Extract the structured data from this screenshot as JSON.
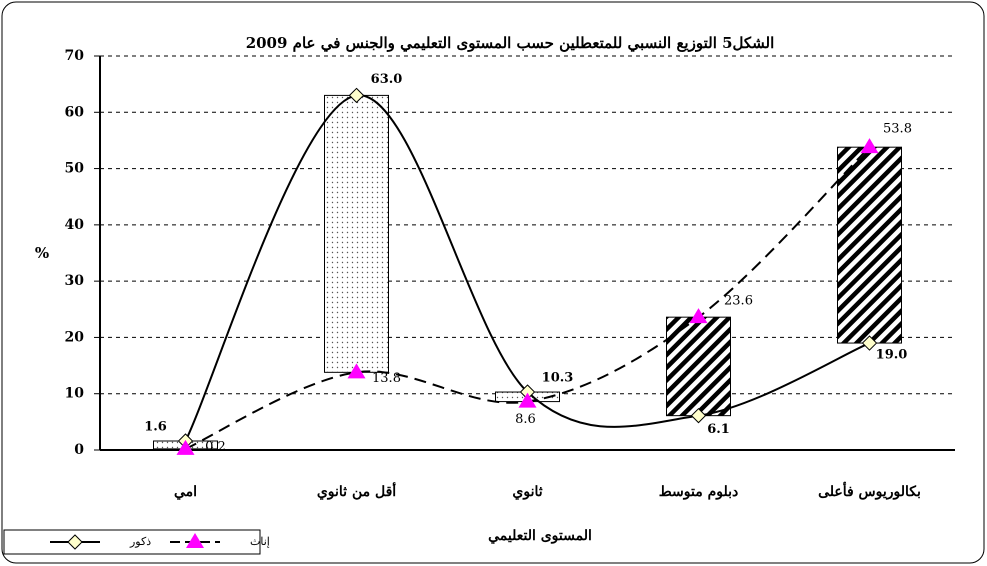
{
  "chart_data": {
    "type": "line",
    "title": "الشكل5 التوزيع النسبي للمتعطلين حسب المستوى التعليمي والجنس في عام 2009",
    "y_label": "%",
    "x_label": "المستوى التعليمي",
    "categories": [
      "امي",
      "أقل من ثانوي",
      "ثانوي",
      "دبلوم متوسط",
      "بكالوريوس فأعلى"
    ],
    "series": [
      {
        "name": "ذكور",
        "color": "#000000",
        "marker_color": "#ffffcc",
        "values": [
          1.6,
          63.0,
          10.3,
          6.1,
          19.0
        ],
        "value_labels": [
          "1.6",
          "63.0",
          "10.3",
          "6.1",
          "19.0"
        ]
      },
      {
        "name": "إناث",
        "color": "#000000",
        "marker_color": "#ff00ff",
        "values": [
          0.2,
          13.8,
          8.6,
          23.6,
          53.8
        ],
        "value_labels": [
          "0.2",
          "13.8",
          "8.6",
          "23.6",
          "53.8"
        ]
      }
    ],
    "ylim": [
      0,
      70
    ],
    "yticks": [
      0,
      10,
      20,
      30,
      40,
      50,
      60,
      70
    ],
    "grid": true,
    "legend": "bottom-left"
  }
}
